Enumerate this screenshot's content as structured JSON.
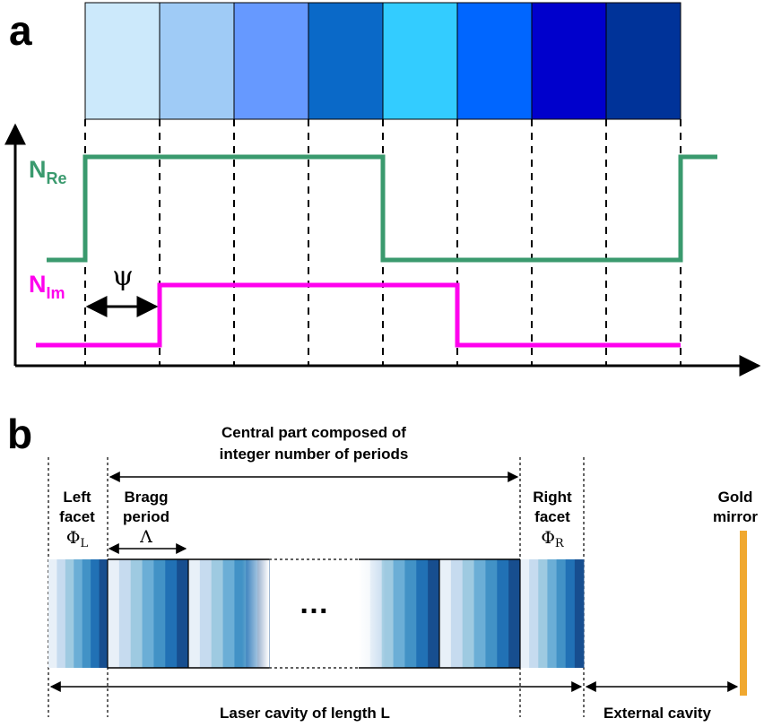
{
  "panel_a": {
    "label": "a",
    "n_re": {
      "main": "N",
      "sub": "Re",
      "color": "#3a9a6e"
    },
    "n_im": {
      "main": "N",
      "sub": "Im",
      "color": "#ff00ee"
    },
    "psi": "ψ",
    "cell_colors": [
      "#cce9fb",
      "#9fcbf6",
      "#6699ff",
      "#0a69c8",
      "#33ccff",
      "#0066ff",
      "#0000cc",
      "#003399"
    ],
    "n_re_levels": [
      "low",
      "high",
      "high",
      "high",
      "high",
      "low",
      "low",
      "low",
      "low",
      "high"
    ],
    "n_im_levels": [
      "low",
      "low",
      "high",
      "high",
      "high",
      "high",
      "low",
      "low",
      "low"
    ]
  },
  "panel_b": {
    "label": "b",
    "central_part": [
      "Central part composed of",
      "integer number of periods"
    ],
    "left_facet": {
      "lines": [
        "Left",
        "facet"
      ],
      "symbol": "Φ",
      "sub": "L"
    },
    "bragg_period": {
      "lines": [
        "Bragg",
        "period"
      ],
      "symbol": "Λ"
    },
    "right_facet": {
      "lines": [
        "Right",
        "facet"
      ],
      "symbol": "Φ",
      "sub": "R"
    },
    "gold_mirror": [
      "Gold",
      "mirror"
    ],
    "ellipsis": "…",
    "laser_cavity": "Laser cavity of length L",
    "external_cavity": "External cavity",
    "stripe_colors": [
      "#e8f0f8",
      "#c6dbef",
      "#9ecae1",
      "#6baed6",
      "#4292c6",
      "#2171b5",
      "#174e8f"
    ],
    "mirror_color": "#f0a830"
  }
}
